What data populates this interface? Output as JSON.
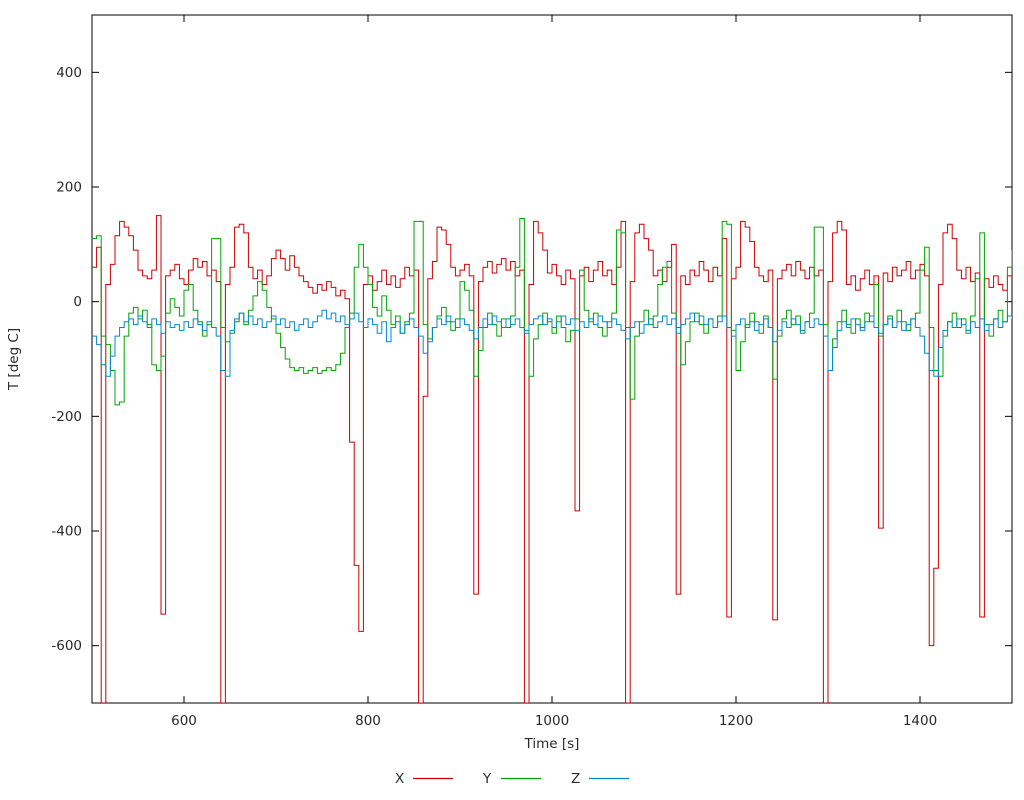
{
  "chart_data": {
    "type": "line",
    "title": "",
    "xlabel": "Time [s]",
    "ylabel": "T [deg C]",
    "xlim": [
      500,
      1500
    ],
    "ylim": [
      -700,
      500
    ],
    "xticks": [
      600,
      800,
      1000,
      1200,
      1400
    ],
    "yticks": [
      -600,
      -400,
      -200,
      0,
      200,
      400
    ],
    "grid": false,
    "legend_position": "bottom-center",
    "line_style": "steps-post",
    "background": "#ffffff",
    "border_color": "#000000",
    "tick_label_color": "#2a2a2a",
    "x_start": 500,
    "x_step": 5,
    "series": [
      {
        "name": "X",
        "color": "#cc0000",
        "values": [
          60,
          95,
          -700,
          30,
          65,
          115,
          140,
          130,
          115,
          90,
          55,
          45,
          40,
          55,
          150,
          -545,
          45,
          55,
          65,
          40,
          30,
          55,
          75,
          60,
          70,
          45,
          55,
          35,
          -700,
          30,
          60,
          130,
          135,
          120,
          60,
          40,
          55,
          30,
          45,
          75,
          90,
          75,
          55,
          80,
          60,
          45,
          35,
          25,
          15,
          30,
          20,
          35,
          25,
          10,
          20,
          5,
          -245,
          -460,
          -575,
          30,
          45,
          20,
          35,
          55,
          30,
          45,
          25,
          40,
          60,
          45,
          55,
          -700,
          -165,
          40,
          70,
          130,
          125,
          100,
          60,
          45,
          55,
          65,
          45,
          -510,
          35,
          60,
          70,
          50,
          65,
          75,
          55,
          70,
          45,
          55,
          -700,
          30,
          140,
          120,
          90,
          50,
          65,
          45,
          30,
          55,
          40,
          -365,
          45,
          60,
          35,
          55,
          70,
          45,
          55,
          30,
          60,
          140,
          -700,
          35,
          120,
          135,
          110,
          90,
          45,
          55,
          35,
          60,
          100,
          -510,
          45,
          30,
          55,
          45,
          70,
          55,
          35,
          60,
          45,
          110,
          -550,
          40,
          60,
          140,
          130,
          105,
          60,
          45,
          35,
          55,
          -555,
          40,
          55,
          65,
          45,
          70,
          55,
          40,
          60,
          45,
          55,
          -700,
          35,
          120,
          140,
          125,
          30,
          45,
          20,
          40,
          55,
          30,
          45,
          -395,
          50,
          35,
          60,
          45,
          55,
          70,
          40,
          55,
          65,
          45,
          -600,
          -465,
          30,
          120,
          135,
          110,
          55,
          40,
          60,
          35,
          50,
          -550,
          40,
          25,
          45,
          30,
          20,
          45,
          65
        ]
      },
      {
        "name": "Y",
        "color": "#00a400",
        "values": [
          110,
          115,
          -60,
          -75,
          -120,
          -180,
          -175,
          -60,
          -20,
          -10,
          -30,
          -15,
          -40,
          -110,
          -120,
          -95,
          -20,
          5,
          -10,
          -25,
          20,
          30,
          -15,
          -35,
          -60,
          -40,
          110,
          110,
          -45,
          -70,
          -55,
          -35,
          -20,
          -40,
          -15,
          10,
          35,
          20,
          -10,
          -30,
          -55,
          -80,
          -100,
          -115,
          -120,
          -115,
          -125,
          -120,
          -115,
          -125,
          -120,
          -115,
          -120,
          -110,
          -90,
          -45,
          -20,
          60,
          100,
          60,
          30,
          -10,
          -25,
          10,
          -15,
          -40,
          -25,
          -55,
          -35,
          -20,
          140,
          140,
          -40,
          -65,
          -45,
          -25,
          -10,
          -35,
          -50,
          -30,
          35,
          20,
          -15,
          -130,
          -85,
          -45,
          -20,
          -40,
          -60,
          -30,
          -45,
          -25,
          60,
          145,
          -50,
          -130,
          -65,
          -40,
          -20,
          -35,
          -55,
          -25,
          -45,
          -70,
          -50,
          -30,
          55,
          -15,
          -35,
          -20,
          -45,
          -60,
          -35,
          -20,
          125,
          120,
          -45,
          -170,
          -60,
          -35,
          -15,
          -40,
          -25,
          30,
          60,
          70,
          -20,
          -45,
          -110,
          -70,
          -35,
          -20,
          -40,
          -55,
          -30,
          -45,
          -25,
          140,
          135,
          -50,
          -120,
          -70,
          -40,
          -20,
          -35,
          -55,
          -25,
          -45,
          -135,
          -60,
          -30,
          -15,
          -40,
          -25,
          -50,
          -35,
          -20,
          130,
          130,
          -40,
          -120,
          -65,
          -35,
          -15,
          -40,
          -55,
          -30,
          -45,
          -20,
          -35,
          30,
          -60,
          -40,
          -25,
          -45,
          -15,
          -35,
          -50,
          -30,
          -20,
          55,
          95,
          -45,
          -120,
          -130,
          -60,
          -35,
          -20,
          -45,
          -30,
          -50,
          -25,
          40,
          120,
          -40,
          -60,
          -30,
          -15,
          -35,
          60,
          90
        ]
      },
      {
        "name": "Z",
        "color": "#0088cc",
        "values": [
          -60,
          -75,
          -110,
          -130,
          -95,
          -60,
          -45,
          -35,
          -30,
          -40,
          -25,
          -35,
          -45,
          -30,
          -40,
          -55,
          -35,
          -45,
          -40,
          -50,
          -35,
          -45,
          -30,
          -40,
          -50,
          -35,
          -45,
          -60,
          -120,
          -130,
          -50,
          -30,
          -20,
          -35,
          -25,
          -40,
          -30,
          -45,
          -35,
          -25,
          -40,
          -30,
          -45,
          -35,
          -50,
          -40,
          -30,
          -45,
          -35,
          -25,
          -15,
          -30,
          -20,
          -35,
          -25,
          -40,
          -30,
          -20,
          -35,
          -45,
          -30,
          -40,
          -55,
          -35,
          -70,
          -45,
          -35,
          -55,
          -40,
          -30,
          -45,
          -60,
          -90,
          -70,
          -45,
          -30,
          -40,
          -25,
          -35,
          -45,
          -30,
          -40,
          -50,
          -65,
          -45,
          -30,
          -40,
          -25,
          -35,
          -45,
          -30,
          -40,
          -30,
          -45,
          -55,
          -40,
          -30,
          -25,
          -40,
          -30,
          -45,
          -35,
          -25,
          -40,
          -30,
          -50,
          -35,
          -45,
          -30,
          -40,
          -25,
          -35,
          -45,
          -30,
          -40,
          -50,
          -65,
          -45,
          -35,
          -55,
          -40,
          -30,
          -45,
          -35,
          -25,
          -40,
          -30,
          -55,
          -40,
          -30,
          -20,
          -35,
          -25,
          -40,
          -30,
          -45,
          -35,
          -25,
          -45,
          -60,
          -40,
          -30,
          -45,
          -35,
          -50,
          -40,
          -30,
          -45,
          -70,
          -50,
          -35,
          -45,
          -30,
          -40,
          -55,
          -35,
          -45,
          -30,
          -40,
          -60,
          -120,
          -80,
          -50,
          -35,
          -45,
          -30,
          -40,
          -50,
          -35,
          -25,
          -45,
          -55,
          -40,
          -30,
          -45,
          -35,
          -50,
          -40,
          -30,
          -45,
          -60,
          -90,
          -120,
          -130,
          -80,
          -50,
          -35,
          -45,
          -30,
          -40,
          -55,
          -35,
          -45,
          -30,
          -50,
          -40,
          -30,
          -45,
          -35,
          -25,
          -30
        ]
      }
    ]
  }
}
